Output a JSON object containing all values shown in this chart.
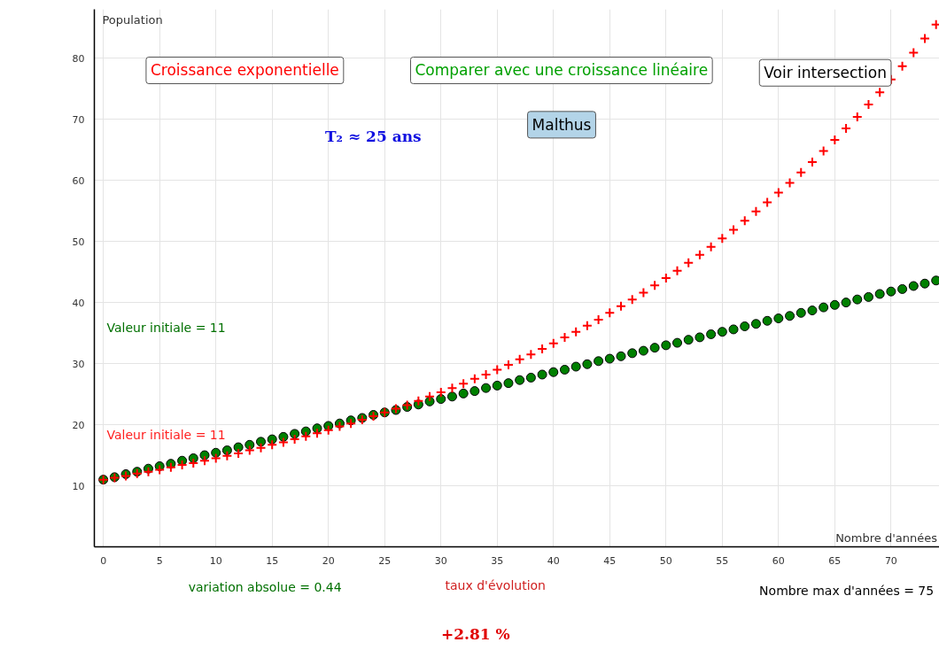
{
  "chart_data": {
    "type": "scatter",
    "xlabel": "Nombre d'années",
    "ylabel": "Population",
    "x": [
      0,
      1,
      2,
      3,
      4,
      5,
      6,
      7,
      8,
      9,
      10,
      11,
      12,
      13,
      14,
      15,
      16,
      17,
      18,
      19,
      20,
      21,
      22,
      23,
      24,
      25,
      26,
      27,
      28,
      29,
      30,
      31,
      32,
      33,
      34,
      35,
      36,
      37,
      38,
      39,
      40,
      41,
      42,
      43,
      44,
      45,
      46,
      47,
      48,
      49,
      50,
      51,
      52,
      53,
      54,
      55,
      56,
      57,
      58,
      59,
      60,
      61,
      62,
      63,
      64,
      65,
      66,
      67,
      68,
      69,
      70,
      71,
      72,
      73,
      74
    ],
    "series": [
      {
        "color": "#ff0000",
        "marker": "cross",
        "values": [
          11.0,
          11.3,
          11.6,
          12.0,
          12.3,
          12.6,
          13.0,
          13.4,
          13.7,
          14.1,
          14.5,
          14.9,
          15.3,
          15.8,
          16.2,
          16.7,
          17.1,
          17.6,
          18.1,
          18.6,
          19.1,
          19.7,
          20.2,
          20.8,
          21.4,
          22.0,
          22.6,
          23.2,
          23.9,
          24.6,
          25.3,
          26.0,
          26.7,
          27.5,
          28.2,
          29.0,
          29.8,
          30.7,
          31.5,
          32.4,
          33.3,
          34.3,
          35.2,
          36.2,
          37.2,
          38.3,
          39.4,
          40.5,
          41.6,
          42.8,
          44.0,
          45.2,
          46.5,
          47.8,
          49.1,
          50.5,
          51.9,
          53.4,
          54.9,
          56.4,
          58.0,
          59.6,
          61.3,
          63.0,
          64.8,
          66.6,
          68.5,
          70.4,
          72.4,
          74.4,
          76.5,
          78.7,
          80.9,
          83.2,
          85.5
        ]
      },
      {
        "color": "#008000",
        "marker": "circle",
        "values": [
          11.0,
          11.4,
          11.9,
          12.3,
          12.8,
          13.2,
          13.6,
          14.1,
          14.5,
          15.0,
          15.4,
          15.8,
          16.3,
          16.7,
          17.2,
          17.6,
          18.0,
          18.5,
          18.9,
          19.4,
          19.8,
          20.2,
          20.7,
          21.1,
          21.6,
          22.0,
          22.4,
          22.9,
          23.3,
          23.8,
          24.2,
          24.6,
          25.1,
          25.5,
          26.0,
          26.4,
          26.8,
          27.3,
          27.7,
          28.2,
          28.6,
          29.0,
          29.5,
          29.9,
          30.4,
          30.8,
          31.2,
          31.7,
          32.1,
          32.6,
          33.0,
          33.4,
          33.9,
          34.3,
          34.8,
          35.2,
          35.6,
          36.1,
          36.5,
          37.0,
          37.4,
          37.8,
          38.3,
          38.7,
          39.2,
          39.6,
          40.0,
          40.5,
          40.9,
          41.4,
          41.8,
          42.2,
          42.7,
          43.1,
          43.6
        ]
      }
    ],
    "xlim": [
      -0.8,
      74.3
    ],
    "ylim": [
      0,
      88
    ],
    "xticks": [
      0,
      5,
      10,
      15,
      20,
      25,
      30,
      35,
      40,
      45,
      50,
      55,
      60,
      65,
      70
    ],
    "yticks": [
      10,
      20,
      30,
      40,
      50,
      60,
      70,
      80
    ],
    "grid": true,
    "annotations": [
      "Croissance exponentielle",
      "Comparer avec une croissance linéaire",
      "Voir intersection",
      "Malthus",
      "T₂ ≈ 25 ans",
      "Valeur initiale = 11",
      "Valeur initiale = 11",
      "variation absolue = 0.44",
      "taux d'évolution",
      "+2.81 %",
      "Nombre max d'années = 75"
    ]
  }
}
